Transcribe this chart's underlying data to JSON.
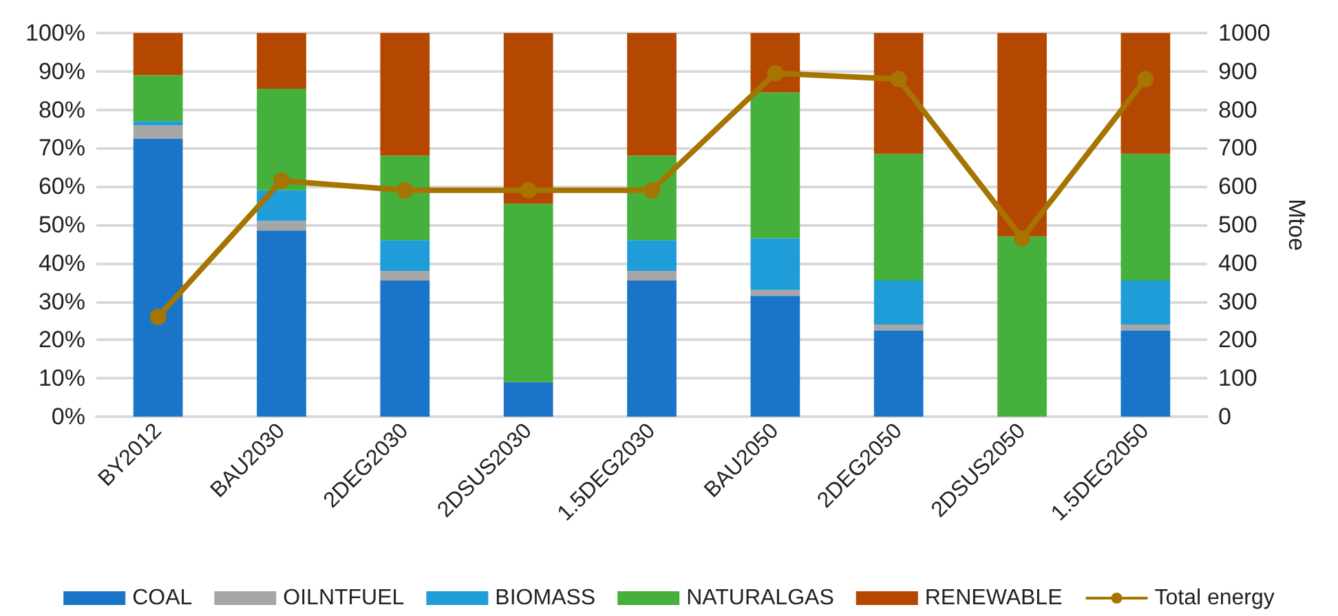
{
  "chart_data": {
    "type": "bar",
    "stacked": true,
    "y2label": "Mtoe",
    "categories": [
      "BY2012",
      "BAU2030",
      "2DEG2030",
      "2DSUS2030",
      "1.5DEG2030",
      "BAU2050",
      "2DEG2050",
      "2DSUS2050",
      "1.5DEG2050"
    ],
    "series": [
      {
        "name": "COAL",
        "color": "#1a75c9",
        "values": [
          72.5,
          48.5,
          35.5,
          9,
          35.5,
          31.5,
          22.5,
          0,
          22.5
        ]
      },
      {
        "name": "OILNTFUEL",
        "color": "#a6a6a6",
        "values": [
          3.5,
          2.5,
          2.5,
          0,
          2.5,
          1.5,
          1.5,
          0,
          1.5
        ]
      },
      {
        "name": "BIOMASS",
        "color": "#1e9dd9",
        "values": [
          1,
          8,
          8,
          0,
          8,
          13.5,
          11.5,
          0,
          11.5
        ]
      },
      {
        "name": "NATURALGAS",
        "color": "#45b03c",
        "values": [
          12,
          26.5,
          22,
          46.5,
          22,
          38,
          33,
          47,
          33
        ]
      },
      {
        "name": "RENEWABLE",
        "color": "#b54800",
        "values": [
          11,
          14.5,
          32,
          44.5,
          32,
          15.5,
          31.5,
          53,
          31.5
        ]
      },
      {
        "name": "Total energy",
        "type": "line",
        "axis": "y2",
        "color": "#a67400",
        "values": [
          260,
          615,
          590,
          590,
          590,
          895,
          880,
          465,
          880
        ]
      }
    ],
    "ylim": [
      0,
      100
    ],
    "yticks": [
      {
        "value": 0,
        "label": "0%"
      },
      {
        "value": 10,
        "label": "10%"
      },
      {
        "value": 20,
        "label": "20%"
      },
      {
        "value": 30,
        "label": "30%"
      },
      {
        "value": 40,
        "label": "40%"
      },
      {
        "value": 50,
        "label": "50%"
      },
      {
        "value": 60,
        "label": "60%"
      },
      {
        "value": 70,
        "label": "70%"
      },
      {
        "value": 80,
        "label": "80%"
      },
      {
        "value": 90,
        "label": "90%"
      },
      {
        "value": 100,
        "label": "100%"
      }
    ],
    "y2lim": [
      0,
      1000
    ],
    "y2ticks": [
      0,
      100,
      200,
      300,
      400,
      500,
      600,
      700,
      800,
      900,
      1000
    ],
    "grid": "y",
    "legend": "bottom",
    "marker": "circle",
    "line_style": "solid"
  }
}
